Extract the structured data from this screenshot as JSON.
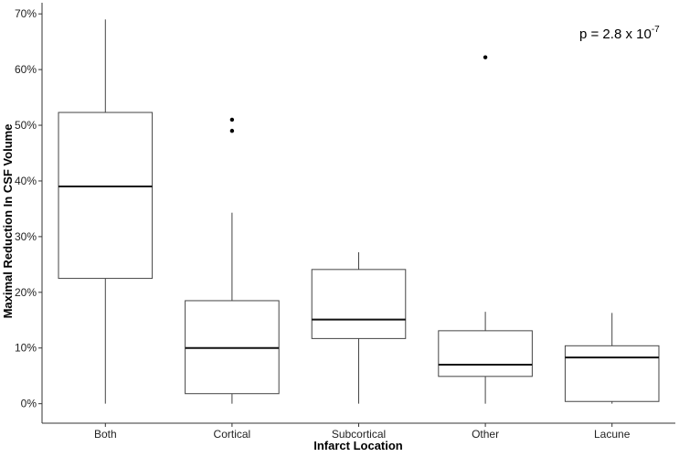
{
  "chart_data": {
    "type": "box",
    "xlabel": "Infarct Location",
    "ylabel": "Maximal Reduction In CSF Volume",
    "ylim": [
      -3.5,
      72
    ],
    "yticks": [
      0,
      10,
      20,
      30,
      40,
      50,
      60,
      70
    ],
    "ytick_labels": [
      "0%",
      "10%",
      "20%",
      "30%",
      "40%",
      "50%",
      "60%",
      "70%"
    ],
    "grid": false,
    "categories": [
      "Both",
      "Cortical",
      "Subcortical",
      "Other",
      "Lacune"
    ],
    "boxes": [
      {
        "category": "Both",
        "whisker_low": 0,
        "q1": 22.5,
        "median": 39.0,
        "q3": 52.3,
        "whisker_high": 69.0,
        "outliers": []
      },
      {
        "category": "Cortical",
        "whisker_low": 0,
        "q1": 1.8,
        "median": 10.0,
        "q3": 18.5,
        "whisker_high": 34.3,
        "outliers": [
          51.0,
          49.0
        ]
      },
      {
        "category": "Subcortical",
        "whisker_low": 0,
        "q1": 11.7,
        "median": 15.1,
        "q3": 24.1,
        "whisker_high": 27.2,
        "outliers": []
      },
      {
        "category": "Other",
        "whisker_low": 0,
        "q1": 4.9,
        "median": 7.0,
        "q3": 13.1,
        "whisker_high": 16.5,
        "outliers": [
          62.2
        ]
      },
      {
        "category": "Lacune",
        "whisker_low": 0,
        "q1": 0.4,
        "median": 8.3,
        "q3": 10.4,
        "whisker_high": 16.3,
        "outliers": []
      }
    ],
    "annotation": {
      "text": "p = 2.8 x 10",
      "superscript": "-7",
      "placement": "top-right"
    }
  }
}
